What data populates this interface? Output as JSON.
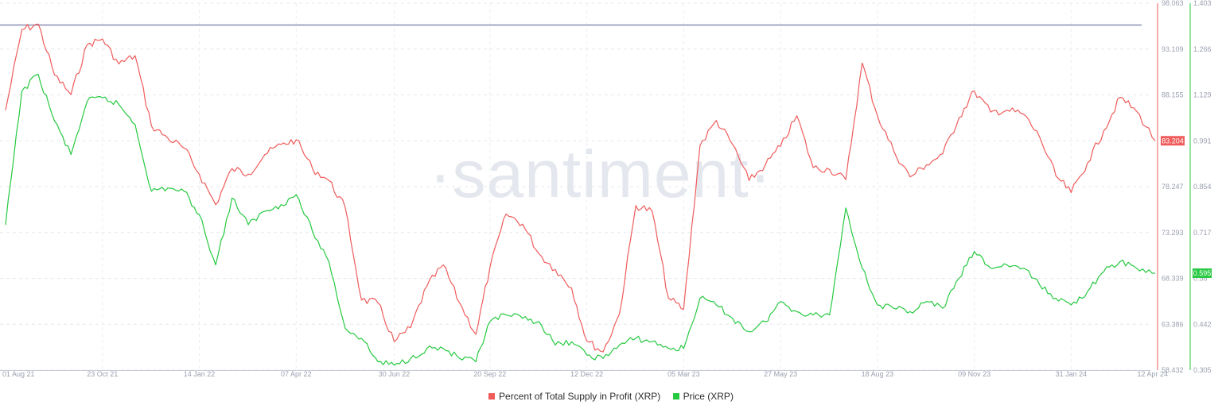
{
  "watermark": "·santiment·",
  "legend": [
    {
      "label": "Percent of Total Supply in Profit (XRP)",
      "color": "#ef5b5b"
    },
    {
      "label": "Price (XRP)",
      "color": "#26c940"
    }
  ],
  "badges": {
    "profit_last": "83.204",
    "price_last": "0.595"
  },
  "chart_data": {
    "type": "line",
    "x_ticks": [
      "01 Aug 21",
      "23 Oct 21",
      "14 Jan 22",
      "07 Apr 22",
      "30 Jun 22",
      "20 Sep 22",
      "12 Dec 22",
      "05 Mar 23",
      "27 May 23",
      "18 Aug 23",
      "09 Nov 23",
      "31 Jan 24",
      "12 Apr 24"
    ],
    "y_left": {
      "ticks": [
        "98.063",
        "93.109",
        "88.155",
        "83.204",
        "78.247",
        "73.293",
        "68.339",
        "63.386",
        "58.432"
      ],
      "range": [
        58.432,
        98.063
      ]
    },
    "y_right": {
      "ticks": [
        "1.403",
        "1.266",
        "1.129",
        "0.991",
        "0.854",
        "0.717",
        "0.58",
        "0.442",
        "0.305"
      ],
      "range": [
        0.305,
        1.403
      ]
    },
    "reference_line": {
      "value": 95.7,
      "axis": "left",
      "color": "#8a8fb5"
    },
    "grid": true,
    "legend_position": "bottom",
    "series": [
      {
        "name": "Percent of Total Supply in Profit (XRP)",
        "axis": "left",
        "color": "#ef5b5b",
        "points": [
          [
            "01 Aug 21",
            86.5
          ],
          [
            "15 Aug 21",
            95.2
          ],
          [
            "29 Aug 21",
            95.8
          ],
          [
            "12 Sep 21",
            90.3
          ],
          [
            "26 Sep 21",
            88.2
          ],
          [
            "10 Oct 21",
            93.6
          ],
          [
            "23 Oct 21",
            94.2
          ],
          [
            "06 Nov 21",
            91.5
          ],
          [
            "20 Nov 21",
            92.4
          ],
          [
            "04 Dec 21",
            84.8
          ],
          [
            "18 Dec 21",
            83.5
          ],
          [
            "01 Jan 22",
            82.4
          ],
          [
            "14 Jan 22",
            79.6
          ],
          [
            "28 Jan 22",
            76.3
          ],
          [
            "11 Feb 22",
            80.2
          ],
          [
            "25 Feb 22",
            79.6
          ],
          [
            "11 Mar 22",
            81.7
          ],
          [
            "25 Mar 22",
            82.8
          ],
          [
            "07 Apr 22",
            83.3
          ],
          [
            "21 Apr 22",
            80.2
          ],
          [
            "05 May 22",
            78.9
          ],
          [
            "19 May 22",
            76.0
          ],
          [
            "02 Jun 22",
            66.0
          ],
          [
            "16 Jun 22",
            65.7
          ],
          [
            "30 Jun 22",
            61.5
          ],
          [
            "14 Jul 22",
            63.0
          ],
          [
            "28 Jul 22",
            67.5
          ],
          [
            "11 Aug 22",
            69.8
          ],
          [
            "25 Aug 22",
            65.7
          ],
          [
            "08 Sep 22",
            62.3
          ],
          [
            "20 Sep 22",
            69.5
          ],
          [
            "04 Oct 22",
            75.3
          ],
          [
            "18 Oct 22",
            74.2
          ],
          [
            "01 Nov 22",
            71.0
          ],
          [
            "15 Nov 22",
            69.3
          ],
          [
            "29 Nov 22",
            67.3
          ],
          [
            "12 Dec 22",
            61.6
          ],
          [
            "26 Dec 22",
            60.4
          ],
          [
            "09 Jan 23",
            64.5
          ],
          [
            "23 Jan 23",
            76.2
          ],
          [
            "06 Feb 23",
            75.6
          ],
          [
            "20 Feb 23",
            66.2
          ],
          [
            "05 Mar 23",
            65.0
          ],
          [
            "19 Mar 23",
            82.7
          ],
          [
            "02 Apr 23",
            85.4
          ],
          [
            "16 Apr 23",
            82.8
          ],
          [
            "30 Apr 23",
            78.9
          ],
          [
            "14 May 23",
            80.6
          ],
          [
            "27 May 23",
            82.6
          ],
          [
            "10 Jun 23",
            85.9
          ],
          [
            "24 Jun 23",
            80.3
          ],
          [
            "08 Jul 23",
            80.1
          ],
          [
            "22 Jul 23",
            79.0
          ],
          [
            "05 Aug 23",
            91.6
          ],
          [
            "18 Aug 23",
            85.9
          ],
          [
            "01 Sep 23",
            82.1
          ],
          [
            "15 Sep 23",
            79.3
          ],
          [
            "29 Sep 23",
            80.6
          ],
          [
            "13 Oct 23",
            81.8
          ],
          [
            "27 Oct 23",
            85.7
          ],
          [
            "09 Nov 23",
            88.6
          ],
          [
            "23 Nov 23",
            86.3
          ],
          [
            "07 Dec 23",
            86.5
          ],
          [
            "21 Dec 23",
            86.1
          ],
          [
            "04 Jan 24",
            83.6
          ],
          [
            "18 Jan 24",
            79.4
          ],
          [
            "31 Jan 24",
            77.6
          ],
          [
            "14 Feb 24",
            80.8
          ],
          [
            "28 Feb 24",
            84.3
          ],
          [
            "13 Mar 24",
            87.9
          ],
          [
            "27 Mar 24",
            86.4
          ],
          [
            "12 Apr 24",
            83.2
          ]
        ]
      },
      {
        "name": "Price (XRP)",
        "axis": "right",
        "color": "#26c940",
        "points": [
          [
            "01 Aug 21",
            0.74
          ],
          [
            "15 Aug 21",
            1.14
          ],
          [
            "29 Aug 21",
            1.19
          ],
          [
            "12 Sep 21",
            1.05
          ],
          [
            "26 Sep 21",
            0.95
          ],
          [
            "10 Oct 21",
            1.11
          ],
          [
            "23 Oct 21",
            1.12
          ],
          [
            "06 Nov 21",
            1.1
          ],
          [
            "20 Nov 21",
            1.04
          ],
          [
            "04 Dec 21",
            0.84
          ],
          [
            "18 Dec 21",
            0.85
          ],
          [
            "01 Jan 22",
            0.84
          ],
          [
            "14 Jan 22",
            0.77
          ],
          [
            "28 Jan 22",
            0.62
          ],
          [
            "11 Feb 22",
            0.82
          ],
          [
            "25 Feb 22",
            0.74
          ],
          [
            "11 Mar 22",
            0.78
          ],
          [
            "25 Mar 22",
            0.8
          ],
          [
            "07 Apr 22",
            0.83
          ],
          [
            "21 Apr 22",
            0.72
          ],
          [
            "05 May 22",
            0.63
          ],
          [
            "19 May 22",
            0.43
          ],
          [
            "02 Jun 22",
            0.4
          ],
          [
            "16 Jun 22",
            0.33
          ],
          [
            "30 Jun 22",
            0.32
          ],
          [
            "14 Jul 22",
            0.34
          ],
          [
            "28 Jul 22",
            0.37
          ],
          [
            "11 Aug 22",
            0.37
          ],
          [
            "25 Aug 22",
            0.34
          ],
          [
            "08 Sep 22",
            0.33
          ],
          [
            "20 Sep 22",
            0.45
          ],
          [
            "04 Oct 22",
            0.47
          ],
          [
            "18 Oct 22",
            0.46
          ],
          [
            "01 Nov 22",
            0.45
          ],
          [
            "15 Nov 22",
            0.38
          ],
          [
            "29 Nov 22",
            0.39
          ],
          [
            "12 Dec 22",
            0.35
          ],
          [
            "26 Dec 22",
            0.34
          ],
          [
            "09 Jan 23",
            0.38
          ],
          [
            "23 Jan 23",
            0.4
          ],
          [
            "06 Feb 23",
            0.39
          ],
          [
            "20 Feb 23",
            0.37
          ],
          [
            "05 Mar 23",
            0.37
          ],
          [
            "19 Mar 23",
            0.52
          ],
          [
            "02 Apr 23",
            0.5
          ],
          [
            "16 Apr 23",
            0.46
          ],
          [
            "30 Apr 23",
            0.42
          ],
          [
            "14 May 23",
            0.45
          ],
          [
            "27 May 23",
            0.51
          ],
          [
            "10 Jun 23",
            0.48
          ],
          [
            "24 Jun 23",
            0.47
          ],
          [
            "08 Jul 23",
            0.47
          ],
          [
            "22 Jul 23",
            0.79
          ],
          [
            "05 Aug 23",
            0.61
          ],
          [
            "18 Aug 23",
            0.5
          ],
          [
            "01 Sep 23",
            0.49
          ],
          [
            "15 Sep 23",
            0.48
          ],
          [
            "29 Sep 23",
            0.51
          ],
          [
            "13 Oct 23",
            0.49
          ],
          [
            "27 Oct 23",
            0.58
          ],
          [
            "09 Nov 23",
            0.66
          ],
          [
            "23 Nov 23",
            0.61
          ],
          [
            "07 Dec 23",
            0.62
          ],
          [
            "21 Dec 23",
            0.61
          ],
          [
            "04 Jan 24",
            0.56
          ],
          [
            "18 Jan 24",
            0.52
          ],
          [
            "31 Jan 24",
            0.5
          ],
          [
            "14 Feb 24",
            0.54
          ],
          [
            "28 Feb 24",
            0.6
          ],
          [
            "13 Mar 24",
            0.63
          ],
          [
            "27 Mar 24",
            0.61
          ],
          [
            "12 Apr 24",
            0.595
          ]
        ]
      }
    ]
  }
}
